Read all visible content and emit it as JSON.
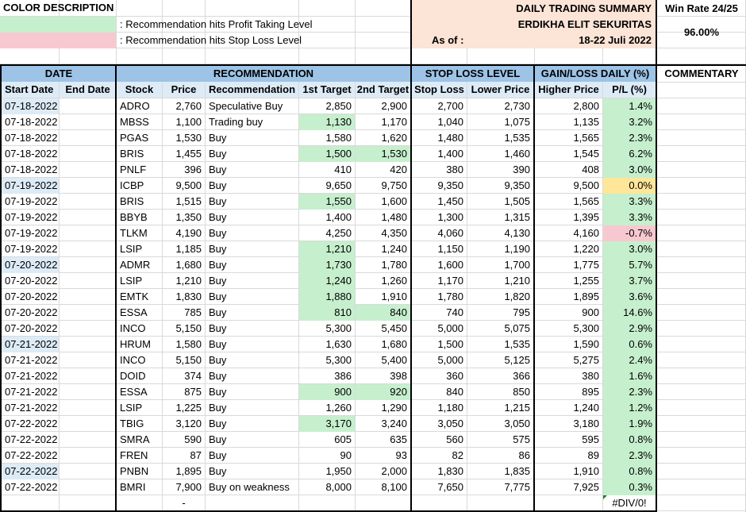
{
  "header": {
    "color_description_title": "COLOR DESCRIPTION",
    "legend_profit": ": Recommendation hits Profit Taking Level",
    "legend_stop": ": Recommendation hits Stop Loss Level",
    "summary_title": "DAILY TRADING SUMMARY",
    "company": "ERDIKHA ELIT SEKURITAS",
    "as_of_label": "As of :",
    "period": "18-22 Juli 2022",
    "win_rate_label": "Win Rate 24/25",
    "win_rate_value": "96.00%"
  },
  "groups": {
    "date": "DATE",
    "recommendation": "RECOMMENDATION",
    "stop_loss_level": "STOP LOSS LEVEL",
    "gain_loss": "GAIN/LOSS DAILY (%)",
    "commentary": "COMMENTARY"
  },
  "columns": {
    "start_date": "Start Date",
    "end_date": "End Date",
    "stock": "Stock",
    "price": "Price",
    "recommendation": "Recommendation",
    "target1": "1st Target",
    "target2": "2nd Target",
    "stop_loss": "Stop Loss",
    "lower_price": "Lower Price",
    "higher_price": "Higher Price",
    "pl": "P/L (%)"
  },
  "colors": {
    "profit": "#c6efce",
    "stop": "#f8c8d0",
    "neutral": "#ffe699",
    "header_blue": "#9dc3e6",
    "subheader_blue": "#ddebf7",
    "summary_bg": "#fce4d6"
  },
  "rows": [
    {
      "start": "07-18-2022",
      "stock": "ADRO",
      "price": "2,760",
      "rec": "Speculative Buy",
      "t1": "2,850",
      "t2": "2,900",
      "sl": "2,700",
      "low": "2,730",
      "high": "2,800",
      "pl": "1.4%",
      "date_hl": true,
      "t1_hit": false,
      "t2_hit": false,
      "pl_status": "profit"
    },
    {
      "start": "07-18-2022",
      "stock": "MBSS",
      "price": "1,100",
      "rec": "Trading buy",
      "t1": "1,130",
      "t2": "1,170",
      "sl": "1,040",
      "low": "1,075",
      "high": "1,135",
      "pl": "3.2%",
      "date_hl": false,
      "t1_hit": true,
      "t2_hit": false,
      "pl_status": "profit"
    },
    {
      "start": "07-18-2022",
      "stock": "PGAS",
      "price": "1,530",
      "rec": "Buy",
      "t1": "1,580",
      "t2": "1,620",
      "sl": "1,480",
      "low": "1,535",
      "high": "1,565",
      "pl": "2.3%",
      "date_hl": false,
      "t1_hit": false,
      "t2_hit": false,
      "pl_status": "profit"
    },
    {
      "start": "07-18-2022",
      "stock": "BRIS",
      "price": "1,455",
      "rec": "Buy",
      "t1": "1,500",
      "t2": "1,530",
      "sl": "1,400",
      "low": "1,460",
      "high": "1,545",
      "pl": "6.2%",
      "date_hl": false,
      "t1_hit": true,
      "t2_hit": true,
      "pl_status": "profit"
    },
    {
      "start": "07-18-2022",
      "stock": "PNLF",
      "price": "396",
      "rec": "Buy",
      "t1": "410",
      "t2": "420",
      "sl": "380",
      "low": "390",
      "high": "408",
      "pl": "3.0%",
      "date_hl": false,
      "t1_hit": false,
      "t2_hit": false,
      "pl_status": "profit"
    },
    {
      "start": "07-19-2022",
      "stock": "ICBP",
      "price": "9,500",
      "rec": "Buy",
      "t1": "9,650",
      "t2": "9,750",
      "sl": "9,350",
      "low": "9,350",
      "high": "9,500",
      "pl": "0.0%",
      "date_hl": true,
      "t1_hit": false,
      "t2_hit": false,
      "pl_status": "neutral"
    },
    {
      "start": "07-19-2022",
      "stock": "BRIS",
      "price": "1,515",
      "rec": "Buy",
      "t1": "1,550",
      "t2": "1,600",
      "sl": "1,450",
      "low": "1,505",
      "high": "1,565",
      "pl": "3.3%",
      "date_hl": false,
      "t1_hit": true,
      "t2_hit": false,
      "pl_status": "profit"
    },
    {
      "start": "07-19-2022",
      "stock": "BBYB",
      "price": "1,350",
      "rec": "Buy",
      "t1": "1,400",
      "t2": "1,480",
      "sl": "1,300",
      "low": "1,315",
      "high": "1,395",
      "pl": "3.3%",
      "date_hl": false,
      "t1_hit": false,
      "t2_hit": false,
      "pl_status": "profit"
    },
    {
      "start": "07-19-2022",
      "stock": "TLKM",
      "price": "4,190",
      "rec": "Buy",
      "t1": "4,250",
      "t2": "4,350",
      "sl": "4,060",
      "low": "4,130",
      "high": "4,160",
      "pl": "-0.7%",
      "date_hl": false,
      "t1_hit": false,
      "t2_hit": false,
      "pl_status": "stop"
    },
    {
      "start": "07-19-2022",
      "stock": "LSIP",
      "price": "1,185",
      "rec": "Buy",
      "t1": "1,210",
      "t2": "1,240",
      "sl": "1,150",
      "low": "1,190",
      "high": "1,220",
      "pl": "3.0%",
      "date_hl": false,
      "t1_hit": true,
      "t2_hit": false,
      "pl_status": "profit"
    },
    {
      "start": "07-20-2022",
      "stock": "ADMR",
      "price": "1,680",
      "rec": "Buy",
      "t1": "1,730",
      "t2": "1,780",
      "sl": "1,600",
      "low": "1,700",
      "high": "1,775",
      "pl": "5.7%",
      "date_hl": true,
      "t1_hit": true,
      "t2_hit": false,
      "pl_status": "profit"
    },
    {
      "start": "07-20-2022",
      "stock": "LSIP",
      "price": "1,210",
      "rec": "Buy",
      "t1": "1,240",
      "t2": "1,260",
      "sl": "1,170",
      "low": "1,210",
      "high": "1,255",
      "pl": "3.7%",
      "date_hl": false,
      "t1_hit": true,
      "t2_hit": false,
      "pl_status": "profit"
    },
    {
      "start": "07-20-2022",
      "stock": "EMTK",
      "price": "1,830",
      "rec": "Buy",
      "t1": "1,880",
      "t2": "1,910",
      "sl": "1,780",
      "low": "1,820",
      "high": "1,895",
      "pl": "3.6%",
      "date_hl": false,
      "t1_hit": true,
      "t2_hit": false,
      "pl_status": "profit"
    },
    {
      "start": "07-20-2022",
      "stock": "ESSA",
      "price": "785",
      "rec": "Buy",
      "t1": "810",
      "t2": "840",
      "sl": "740",
      "low": "795",
      "high": "900",
      "pl": "14.6%",
      "date_hl": false,
      "t1_hit": true,
      "t2_hit": true,
      "pl_status": "profit"
    },
    {
      "start": "07-20-2022",
      "stock": "INCO",
      "price": "5,150",
      "rec": "Buy",
      "t1": "5,300",
      "t2": "5,450",
      "sl": "5,000",
      "low": "5,075",
      "high": "5,300",
      "pl": "2.9%",
      "date_hl": false,
      "t1_hit": false,
      "t2_hit": false,
      "pl_status": "profit"
    },
    {
      "start": "07-21-2022",
      "stock": "HRUM",
      "price": "1,580",
      "rec": "Buy",
      "t1": "1,630",
      "t2": "1,680",
      "sl": "1,500",
      "low": "1,535",
      "high": "1,590",
      "pl": "0.6%",
      "date_hl": true,
      "t1_hit": false,
      "t2_hit": false,
      "pl_status": "profit"
    },
    {
      "start": "07-21-2022",
      "stock": "INCO",
      "price": "5,150",
      "rec": "Buy",
      "t1": "5,300",
      "t2": "5,400",
      "sl": "5,000",
      "low": "5,125",
      "high": "5,275",
      "pl": "2.4%",
      "date_hl": false,
      "t1_hit": false,
      "t2_hit": false,
      "pl_status": "profit"
    },
    {
      "start": "07-21-2022",
      "stock": "DOID",
      "price": "374",
      "rec": "Buy",
      "t1": "386",
      "t2": "398",
      "sl": "360",
      "low": "366",
      "high": "380",
      "pl": "1.6%",
      "date_hl": false,
      "t1_hit": false,
      "t2_hit": false,
      "pl_status": "profit"
    },
    {
      "start": "07-21-2022",
      "stock": "ESSA",
      "price": "875",
      "rec": "Buy",
      "t1": "900",
      "t2": "920",
      "sl": "840",
      "low": "850",
      "high": "895",
      "pl": "2.3%",
      "date_hl": false,
      "t1_hit": true,
      "t2_hit": true,
      "pl_status": "profit"
    },
    {
      "start": "07-21-2022",
      "stock": "LSIP",
      "price": "1,225",
      "rec": "Buy",
      "t1": "1,260",
      "t2": "1,290",
      "sl": "1,180",
      "low": "1,215",
      "high": "1,240",
      "pl": "1.2%",
      "date_hl": false,
      "t1_hit": false,
      "t2_hit": false,
      "pl_status": "profit"
    },
    {
      "start": "07-22-2022",
      "stock": "TBIG",
      "price": "3,120",
      "rec": "Buy",
      "t1": "3,170",
      "t2": "3,240",
      "sl": "3,050",
      "low": "3,050",
      "high": "3,180",
      "pl": "1.9%",
      "date_hl": false,
      "t1_hit": true,
      "t2_hit": false,
      "pl_status": "profit"
    },
    {
      "start": "07-22-2022",
      "stock": "SMRA",
      "price": "590",
      "rec": "Buy",
      "t1": "605",
      "t2": "635",
      "sl": "560",
      "low": "575",
      "high": "595",
      "pl": "0.8%",
      "date_hl": false,
      "t1_hit": false,
      "t2_hit": false,
      "pl_status": "profit"
    },
    {
      "start": "07-22-2022",
      "stock": "FREN",
      "price": "87",
      "rec": "Buy",
      "t1": "90",
      "t2": "93",
      "sl": "82",
      "low": "86",
      "high": "89",
      "pl": "2.3%",
      "date_hl": false,
      "t1_hit": false,
      "t2_hit": false,
      "pl_status": "profit"
    },
    {
      "start": "07-22-2022",
      "stock": "PNBN",
      "price": "1,895",
      "rec": "Buy",
      "t1": "1,950",
      "t2": "2,000",
      "sl": "1,830",
      "low": "1,835",
      "high": "1,910",
      "pl": "0.8%",
      "date_hl": true,
      "t1_hit": false,
      "t2_hit": false,
      "pl_status": "profit"
    },
    {
      "start": "07-22-2022",
      "stock": "BMRI",
      "price": "7,900",
      "rec": "Buy on weakness",
      "t1": "8,000",
      "t2": "8,100",
      "sl": "7,650",
      "low": "7,775",
      "high": "7,925",
      "pl": "0.3%",
      "date_hl": false,
      "t1_hit": false,
      "t2_hit": false,
      "pl_status": "profit"
    }
  ],
  "footer": {
    "price_dash": "-",
    "pl_error": "#DIV/0!"
  }
}
